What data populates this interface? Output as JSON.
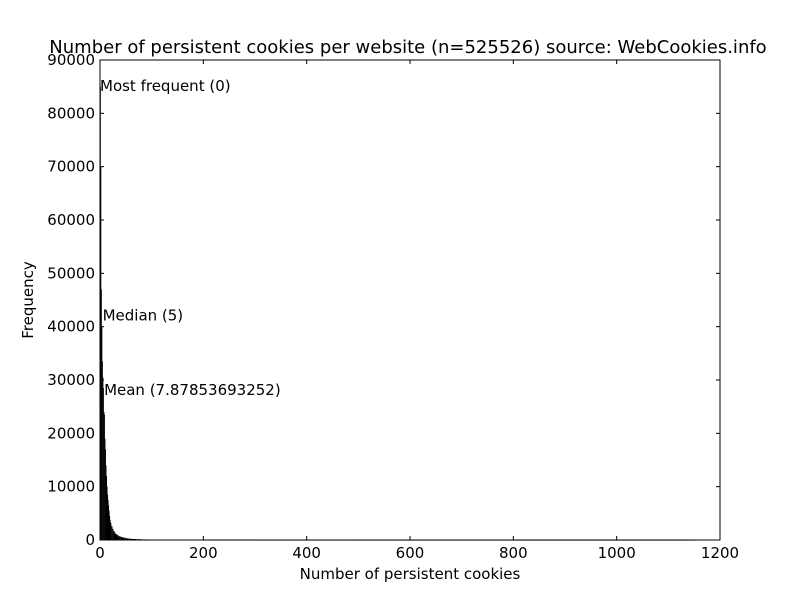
{
  "chart_data": {
    "type": "bar",
    "title": "Number of persistent cookies per website (n=525526) source: WebCookies.info",
    "xlabel": "Number of persistent cookies",
    "ylabel": "Frequency",
    "xlim": [
      0,
      1200
    ],
    "ylim": [
      0,
      90000
    ],
    "xticks": [
      0,
      200,
      400,
      600,
      800,
      1000,
      1200
    ],
    "yticks": [
      0,
      10000,
      20000,
      30000,
      40000,
      50000,
      60000,
      70000,
      80000,
      90000
    ],
    "grid": false,
    "x": [
      0,
      1,
      2,
      3,
      4,
      5,
      6,
      7,
      8,
      9,
      10,
      11,
      12,
      13,
      14,
      15,
      16,
      17,
      18,
      19,
      20,
      22,
      24,
      26,
      28,
      30,
      33,
      36,
      40,
      45,
      50,
      55,
      60,
      70,
      80,
      90,
      100,
      120,
      150,
      200,
      300,
      500,
      800,
      1150
    ],
    "values": [
      85000,
      70000,
      47000,
      40000,
      33500,
      30500,
      28500,
      24000,
      23500,
      19000,
      17000,
      14000,
      12000,
      10000,
      8500,
      7500,
      6500,
      5500,
      4500,
      3800,
      3200,
      2600,
      2100,
      1700,
      1400,
      1100,
      900,
      700,
      550,
      420,
      320,
      250,
      200,
      150,
      110,
      80,
      60,
      40,
      25,
      15,
      8,
      4,
      2,
      1
    ],
    "annotations": [
      {
        "text": "Most frequent (0)",
        "x": 0,
        "y": 85000
      },
      {
        "text": "Median (5)",
        "x": 5,
        "y": 42000
      },
      {
        "text": "Mean (7.87853693252)",
        "x": 7.87853693252,
        "y": 28000
      }
    ]
  }
}
